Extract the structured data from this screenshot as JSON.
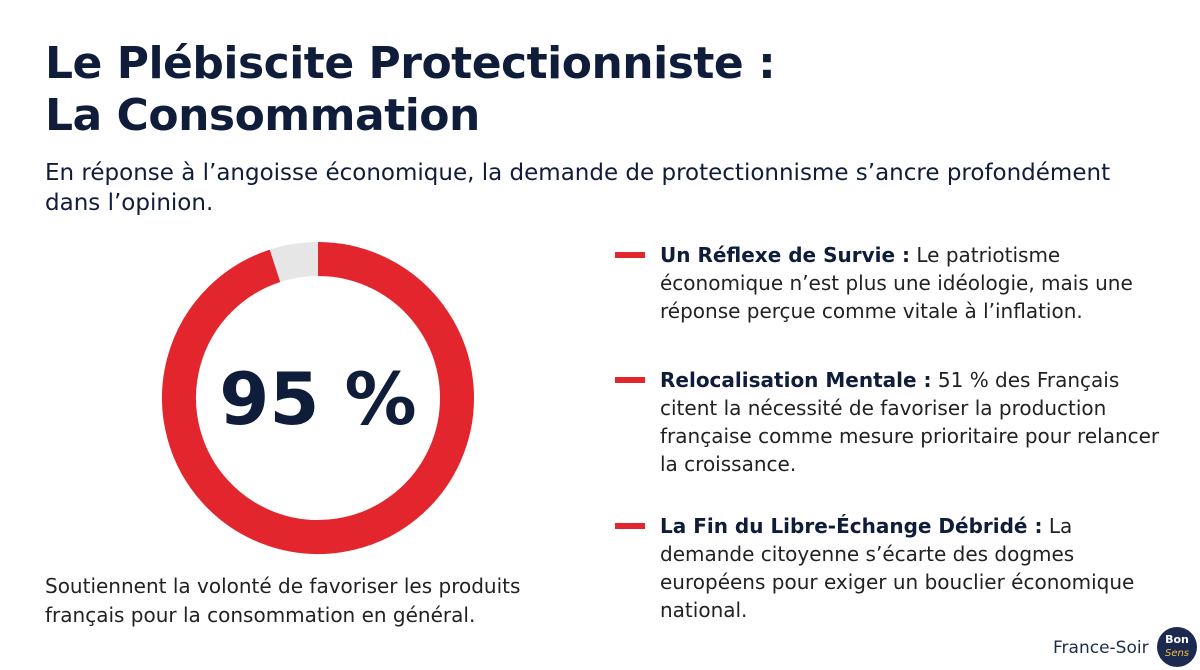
{
  "header": {
    "title": [
      "Le Plébiscite Protectionniste :",
      "La Consommation"
    ],
    "subtitle": "En réponse à l’angoisse économique, la demande de protectionnisme s’ancre profondément dans l’opinion."
  },
  "chart_data": {
    "type": "donut",
    "values": [
      95,
      5
    ],
    "value_labels": [
      "95 %",
      null
    ],
    "colors": [
      "#e3262d",
      "#e6e6e6"
    ]
  },
  "caption": "Soutiennent la volonté de favoriser les produits français pour la consommation en général.",
  "bullets": [
    {
      "title": "Un Réflexe de Survie :",
      "text": "Le patriotisme économique n’est plus une idéologie, mais une réponse perçue comme vitale à l’inflation."
    },
    {
      "title": "Relocalisation Mentale :",
      "text": "51 % des Français citent la nécessité de favoriser la production française comme mesure prioritaire pour relancer la croissance."
    },
    {
      "title": "La Fin du Libre-Échange Débridé :",
      "text": "La demande citoyenne s’écarte des dogmes européens pour exiger un bouclier économique national."
    }
  ],
  "footer": {
    "brand": "France-Soir",
    "logo": [
      "Bon",
      "Sens"
    ]
  }
}
